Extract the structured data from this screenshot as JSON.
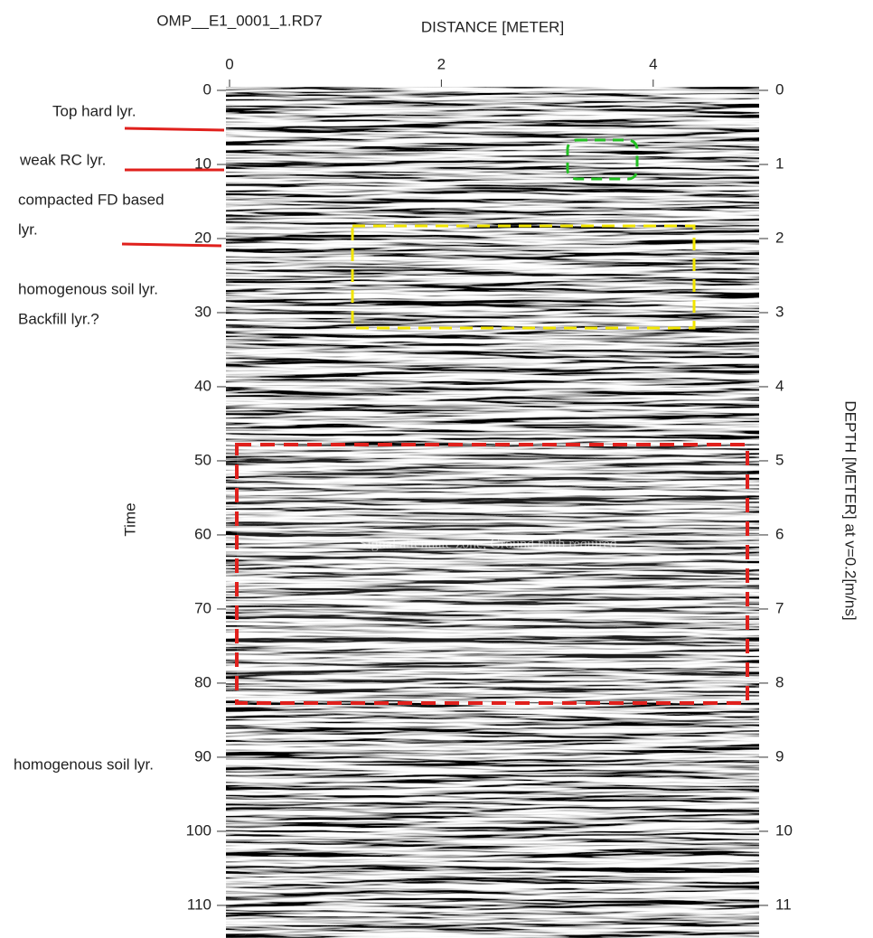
{
  "chart_data": {
    "type": "radargram",
    "title": "OMP__E1_0001_1.RD7",
    "x_label": "DISTANCE [METER]",
    "y_label": "Time",
    "y2_label": "DEPTH [METER] at v=0.2[m/ns]",
    "zone_label": "Signal attenuate zone, Ground truth required",
    "annotations": [
      "Top hard lyr.",
      "weak RC lyr.",
      "compacted FD based",
      "lyr.",
      "homogenous soil lyr.",
      "Backfill lyr.?",
      "homogenous soil lyr."
    ],
    "xlim": [
      0,
      5
    ],
    "xticks": [
      0,
      2,
      4
    ],
    "ylim": [
      0,
      114.4
    ],
    "yticks": [
      0,
      10,
      20,
      30,
      40,
      50,
      60,
      70,
      80,
      90,
      100,
      110
    ],
    "y2lim": [
      0,
      11.44
    ],
    "y2ticks": [
      0,
      1,
      2,
      3,
      4,
      5,
      6,
      7,
      8,
      9,
      10,
      11
    ]
  }
}
